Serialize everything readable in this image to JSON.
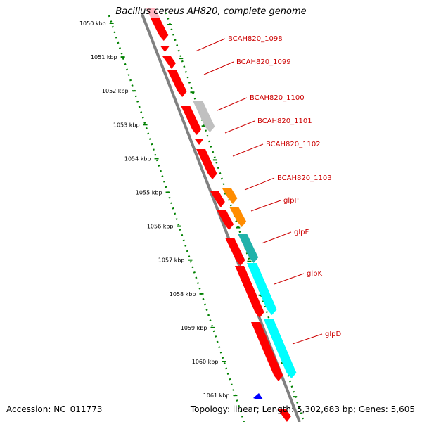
{
  "title": "Bacillus cereus AH820, complete genome",
  "footer": {
    "accession": "Accession: NC_011773",
    "stats": "Topology: linear; Length: 5,302,683 bp; Genes: 5,605"
  },
  "colors": {
    "scale": "#008000",
    "backbone": "#808080",
    "gene_red": "#ff0000",
    "gene_grey": "#c0c0c0",
    "gene_orange": "#ff8c00",
    "gene_cyan": "#00ffff",
    "gene_teal": "#20b2aa",
    "gene_blue": "#0000ff",
    "gene_pink": "#ffb6c1",
    "label": "#cc0000"
  },
  "scale_ticks": [
    "1050 kbp",
    "1051 kbp",
    "1052 kbp",
    "1053 kbp",
    "1054 kbp",
    "1055 kbp",
    "1056 kbp",
    "1057 kbp",
    "1058 kbp",
    "1059 kbp",
    "1060 kbp",
    "1061 kbp"
  ],
  "gene_labels": [
    "BCAH820_1098",
    "BCAH820_1099",
    "BCAH820_1100",
    "BCAH820_1101",
    "BCAH820_1102",
    "BCAH820_1103",
    "glpP",
    "glpF",
    "glpK",
    "glpD"
  ]
}
